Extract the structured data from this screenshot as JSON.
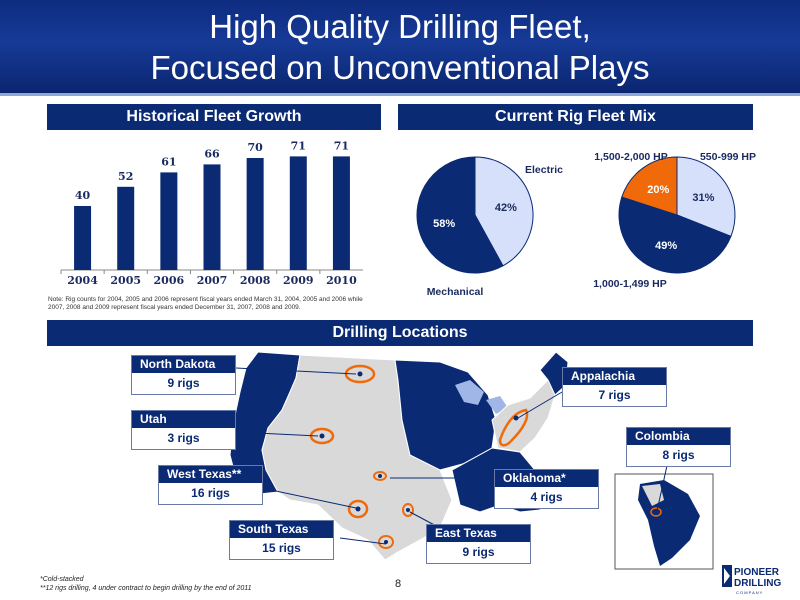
{
  "header": {
    "title_line1": "High Quality Drilling Fleet,",
    "title_line2": "Focused on Unconventional Plays"
  },
  "fleet_growth": {
    "heading": "Historical Fleet Growth",
    "note": "Note: Rig counts for 2004, 2005 and 2006 represent fiscal years ended March 31, 2004, 2005 and 2006 while 2007, 2008 and 2009 represent fiscal years ended December 31, 2007, 2008 and 2009."
  },
  "rig_mix": {
    "heading": "Current Rig Fleet Mix",
    "pie1_labels": {
      "electric": "Electric",
      "mechanical": "Mechanical"
    },
    "pie2_labels": {
      "hp_1500": "1,500-2,000 HP",
      "hp_550": "550-999 HP",
      "hp_1000": "1,000-1,499 HP"
    }
  },
  "chart_data": [
    {
      "type": "bar",
      "title": "Historical Fleet Growth",
      "categories": [
        "2004",
        "2005",
        "2006",
        "2007",
        "2008",
        "2009",
        "2010"
      ],
      "values": [
        40,
        52,
        61,
        66,
        70,
        71,
        71
      ],
      "ylim": [
        0,
        80
      ],
      "color": "#0b2a74"
    },
    {
      "type": "pie",
      "slices": [
        {
          "label": "Electric",
          "value": 42,
          "color": "#d6e0fa"
        },
        {
          "label": "Mechanical",
          "value": 58,
          "color": "#0b2a74"
        }
      ]
    },
    {
      "type": "pie",
      "slices": [
        {
          "label": "550-999 HP",
          "value": 31,
          "color": "#d6e0fa"
        },
        {
          "label": "1,000-1,499 HP",
          "value": 49,
          "color": "#0b2a74"
        },
        {
          "label": "1,500-2,000 HP",
          "value": 20,
          "color": "#f06a0a"
        }
      ]
    }
  ],
  "locations": {
    "heading": "Drilling Locations",
    "north_dakota": {
      "name": "North Dakota",
      "rigs": "9 rigs"
    },
    "utah": {
      "name": "Utah",
      "rigs": "3 rigs"
    },
    "west_texas": {
      "name": "West Texas**",
      "rigs": "16 rigs"
    },
    "south_texas": {
      "name": "South Texas",
      "rigs": "15 rigs"
    },
    "east_texas": {
      "name": "East Texas",
      "rigs": "9 rigs"
    },
    "oklahoma": {
      "name": "Oklahoma*",
      "rigs": "4 rigs"
    },
    "appalachia": {
      "name": "Appalachia",
      "rigs": "7 rigs"
    },
    "colombia": {
      "name": "Colombia",
      "rigs": "8 rigs"
    }
  },
  "footnotes": {
    "cold": "*Cold-stacked",
    "drilling": "**12 rigs drilling, 4 under contract to begin drilling by the end of 2011"
  },
  "page_number": "8",
  "logo": {
    "line1": "PIONEER",
    "line2": "DRILLING",
    "line3": "C O M P A N Y"
  },
  "colors": {
    "navy": "#0b2a74",
    "light_blue": "#d6e0fa",
    "orange": "#f06a0a"
  }
}
